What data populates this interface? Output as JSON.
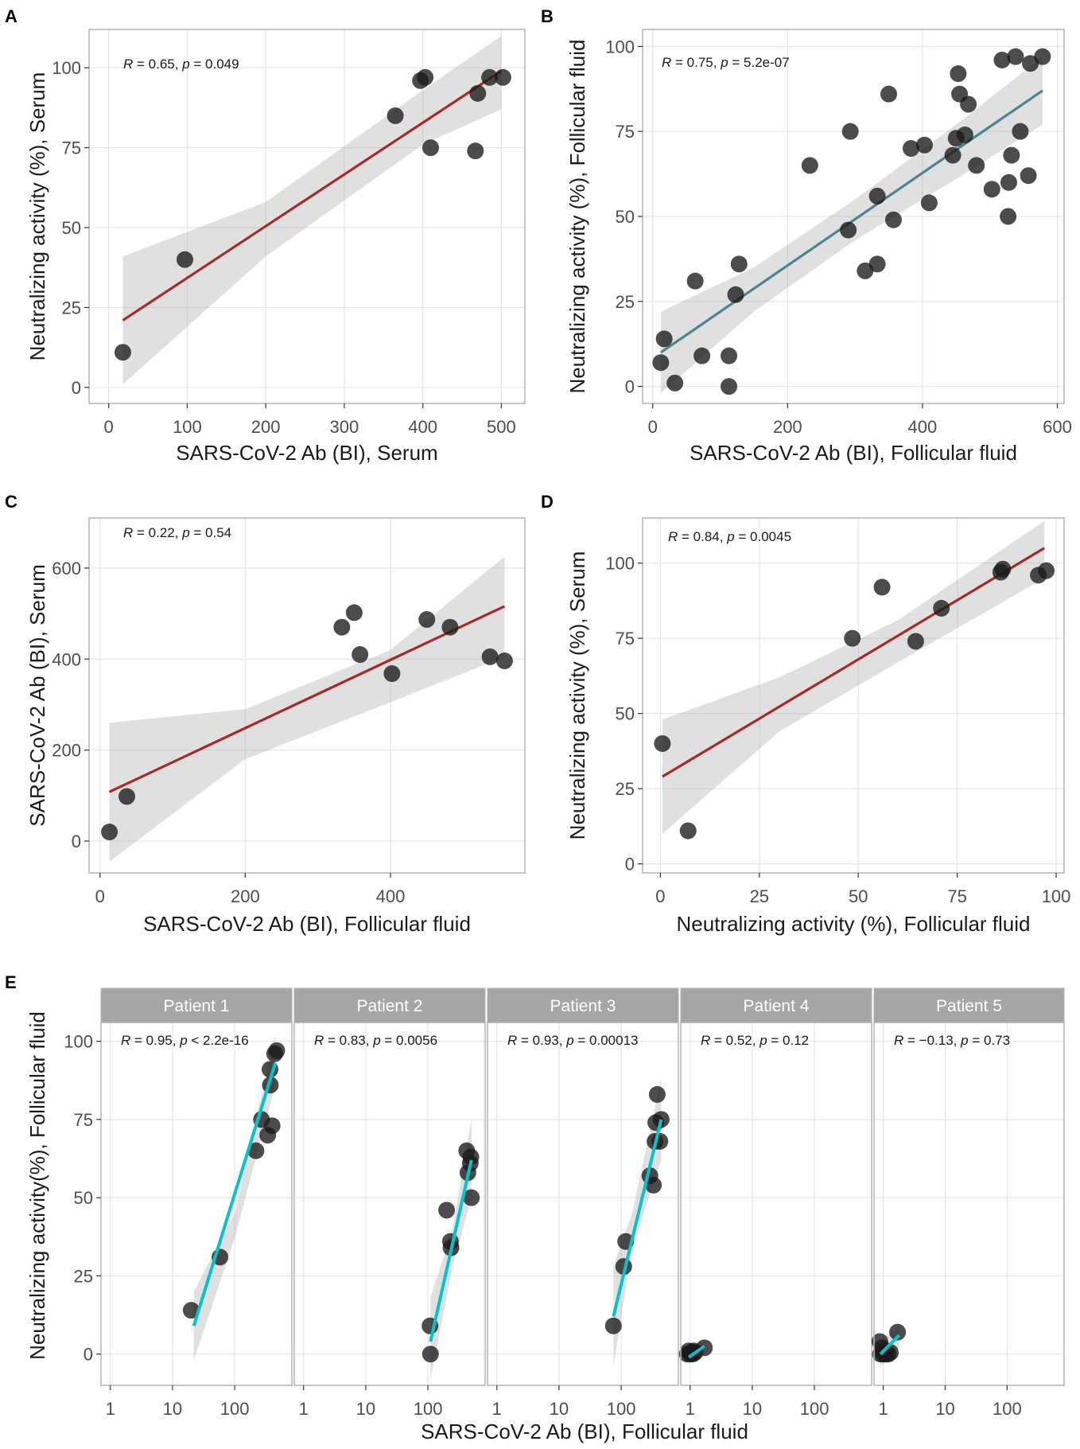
{
  "chart_data": [
    {
      "id": "A",
      "type": "scatter",
      "panel_label": "A",
      "xlabel": "SARS-CoV-2 Ab (BI), Serum",
      "ylabel": "Neutralizing activity (%), Serum",
      "annotation": {
        "r_prefix": "R",
        "r_text": " = 0.65, ",
        "p_prefix": "p",
        "p_text": " = 0.049"
      },
      "xlim": [
        -25,
        530
      ],
      "ylim": [
        -5,
        112
      ],
      "xticks": [
        0,
        100,
        200,
        300,
        400,
        500
      ],
      "yticks": [
        0,
        25,
        50,
        75,
        100
      ],
      "line_color": "#a52a2a",
      "fit": {
        "x0": 18,
        "y0": 21,
        "x1": 500,
        "y1": 99
      },
      "band": [
        [
          18,
          41,
          1
        ],
        [
          200,
          58,
          41
        ],
        [
          400,
          93,
          76
        ],
        [
          500,
          110,
          87
        ]
      ],
      "points": [
        [
          18,
          11
        ],
        [
          97,
          40
        ],
        [
          365,
          85
        ],
        [
          397,
          96
        ],
        [
          403,
          97
        ],
        [
          410,
          75
        ],
        [
          467,
          74
        ],
        [
          470,
          92
        ],
        [
          485,
          97
        ],
        [
          502,
          97
        ]
      ]
    },
    {
      "id": "B",
      "type": "scatter",
      "panel_label": "B",
      "xlabel": "SARS-CoV-2 Ab (BI), Follicular fluid",
      "ylabel": "Neutralizing activity (%), Follicular fluid",
      "annotation": {
        "r_prefix": "R",
        "r_text": " = 0.75, ",
        "p_prefix": "p",
        "p_text": " = 5.2e-07"
      },
      "xlim": [
        -15,
        610
      ],
      "ylim": [
        -5,
        105
      ],
      "xticks": [
        0,
        200,
        400,
        600
      ],
      "yticks": [
        0,
        25,
        50,
        75,
        100
      ],
      "line_color": "#4a8590",
      "fit": {
        "x0": 12,
        "y0": 10,
        "x1": 578,
        "y1": 87
      },
      "band": [
        [
          12,
          22,
          -2
        ],
        [
          150,
          35,
          22
        ],
        [
          300,
          55,
          43
        ],
        [
          450,
          77,
          61
        ],
        [
          578,
          97,
          77
        ]
      ],
      "points": [
        [
          12,
          7
        ],
        [
          17,
          14
        ],
        [
          33,
          1
        ],
        [
          63,
          31
        ],
        [
          73,
          9
        ],
        [
          113,
          9
        ],
        [
          113,
          0
        ],
        [
          123,
          27
        ],
        [
          128,
          36
        ],
        [
          233,
          65
        ],
        [
          290,
          46
        ],
        [
          293,
          75
        ],
        [
          315,
          34
        ],
        [
          333,
          36
        ],
        [
          333,
          56
        ],
        [
          350,
          86
        ],
        [
          357,
          49
        ],
        [
          383,
          70
        ],
        [
          403,
          71
        ],
        [
          410,
          54
        ],
        [
          445,
          68
        ],
        [
          450,
          73
        ],
        [
          453,
          92
        ],
        [
          455,
          86
        ],
        [
          463,
          74
        ],
        [
          468,
          83
        ],
        [
          480,
          65
        ],
        [
          503,
          58
        ],
        [
          518,
          96
        ],
        [
          527,
          50
        ],
        [
          528,
          60
        ],
        [
          532,
          68
        ],
        [
          538,
          97
        ],
        [
          545,
          75
        ],
        [
          557,
          62
        ],
        [
          560,
          95
        ],
        [
          578,
          97
        ]
      ]
    },
    {
      "id": "C",
      "type": "scatter",
      "panel_label": "C",
      "xlabel": "SARS-CoV-2 Ab (BI), Follicular fluid",
      "ylabel": "SARS-CoV-2 Ab (BI), Serum",
      "annotation": {
        "r_prefix": "R",
        "r_text": " = 0.22, ",
        "p_prefix": "p",
        "p_text": " = 0.54"
      },
      "xlim": [
        -15,
        585
      ],
      "ylim": [
        -70,
        710
      ],
      "xticks": [
        0,
        200,
        400
      ],
      "yticks": [
        0,
        200,
        400,
        600
      ],
      "line_color": "#a52a2a",
      "fit": {
        "x0": 13,
        "y0": 108,
        "x1": 557,
        "y1": 516
      },
      "band": [
        [
          13,
          260,
          -45
        ],
        [
          200,
          290,
          180
        ],
        [
          400,
          420,
          305
        ],
        [
          557,
          625,
          405
        ]
      ],
      "points": [
        [
          13,
          20
        ],
        [
          37,
          98
        ],
        [
          333,
          470
        ],
        [
          350,
          502
        ],
        [
          358,
          410
        ],
        [
          402,
          368
        ],
        [
          450,
          487
        ],
        [
          482,
          470
        ],
        [
          537,
          405
        ],
        [
          557,
          396
        ]
      ]
    },
    {
      "id": "D",
      "type": "scatter",
      "panel_label": "D",
      "xlabel": "Neutralizing activity (%), Follicular fluid",
      "ylabel": "Neutralizing activity (%), Serum",
      "annotation": {
        "r_prefix": "R",
        "r_text": " = 0.84, ",
        "p_prefix": "p",
        "p_text": " = 0.0045"
      },
      "xlim": [
        -4.5,
        102
      ],
      "ylim": [
        -3,
        115
      ],
      "xticks": [
        0,
        25,
        50,
        75,
        100
      ],
      "yticks": [
        0,
        25,
        50,
        75,
        100
      ],
      "line_color": "#a52a2a",
      "fit": {
        "x0": 0.5,
        "y0": 29,
        "x1": 97,
        "y1": 105
      },
      "band": [
        [
          0.5,
          48,
          10
        ],
        [
          30,
          62,
          44
        ],
        [
          60,
          81,
          67
        ],
        [
          97,
          114,
          95
        ]
      ],
      "points": [
        [
          0.5,
          40
        ],
        [
          7,
          11
        ],
        [
          48.5,
          75
        ],
        [
          56,
          92
        ],
        [
          64.5,
          74
        ],
        [
          71,
          85
        ],
        [
          86,
          97
        ],
        [
          86.5,
          98
        ],
        [
          95.5,
          96
        ],
        [
          97.5,
          97.5
        ]
      ]
    }
  ],
  "facet_chart": {
    "type": "scatter",
    "panel_label": "E",
    "xlabel": "SARS-CoV-2 Ab (BI), Follicular fluid",
    "ylabel": "Neutralizing activity(%), Follicular fluid",
    "x_scale": "log10",
    "xlim_log10": [
      -0.15,
      2.92
    ],
    "ylim": [
      -10,
      106
    ],
    "xticks": [
      1,
      10,
      100
    ],
    "yticks": [
      0,
      25,
      50,
      75,
      100
    ],
    "line_color": "#00c5cd",
    "facets": [
      {
        "strip": "Patient 1",
        "annotation": {
          "r_prefix": "R",
          "r_text": " = 0.95, ",
          "p_prefix": "p",
          "p_text": " < 2.2e-16"
        },
        "fit": {
          "x0": 22,
          "y0": 9,
          "x1": 450,
          "y1": 93
        },
        "band": [
          [
            22,
            20,
            -2
          ],
          [
            100,
            45,
            37
          ],
          [
            450,
            102,
            86
          ]
        ],
        "points": [
          [
            20,
            14
          ],
          [
            58,
            31
          ],
          [
            220,
            65
          ],
          [
            270,
            75
          ],
          [
            340,
            70
          ],
          [
            370,
            91
          ],
          [
            375,
            86
          ],
          [
            400,
            73
          ],
          [
            440,
            96
          ],
          [
            475,
            97
          ]
        ]
      },
      {
        "strip": "Patient 2",
        "annotation": {
          "r_prefix": "R",
          "r_text": " = 0.83, ",
          "p_prefix": "p",
          "p_text": " = 0.0056"
        },
        "fit": {
          "x0": 110,
          "y0": 4,
          "x1": 500,
          "y1": 62
        },
        "band": [
          [
            110,
            18,
            -8
          ],
          [
            250,
            40,
            28
          ],
          [
            500,
            75,
            50
          ]
        ],
        "points": [
          [
            108,
            9
          ],
          [
            110,
            0
          ],
          [
            200,
            46
          ],
          [
            230,
            36
          ],
          [
            235,
            34
          ],
          [
            420,
            65
          ],
          [
            440,
            58
          ],
          [
            480,
            61
          ],
          [
            490,
            63
          ],
          [
            500,
            50
          ]
        ]
      },
      {
        "strip": "Patient 3",
        "annotation": {
          "r_prefix": "R",
          "r_text": " = 0.93, ",
          "p_prefix": "p",
          "p_text": " = 0.00013"
        },
        "fit": {
          "x0": 75,
          "y0": 12,
          "x1": 440,
          "y1": 75
        },
        "band": [
          [
            75,
            28,
            -4
          ],
          [
            150,
            45,
            34
          ],
          [
            440,
            88,
            62
          ]
        ],
        "points": [
          [
            75,
            9
          ],
          [
            110,
            28
          ],
          [
            118,
            36
          ],
          [
            290,
            57
          ],
          [
            330,
            54
          ],
          [
            350,
            68
          ],
          [
            360,
            74
          ],
          [
            380,
            83
          ],
          [
            420,
            68
          ],
          [
            440,
            75
          ]
        ]
      },
      {
        "strip": "Patient 4",
        "annotation": {
          "r_prefix": "R",
          "r_text": " = 0.52, ",
          "p_prefix": "p",
          "p_text": " = 0.12"
        },
        "fit": {
          "x0": 0.95,
          "y0": -1,
          "x1": 1.7,
          "y1": 2.5
        },
        "band": [
          [
            0.95,
            0.5,
            -2.5
          ],
          [
            1.7,
            4,
            1
          ]
        ],
        "points": [
          [
            0.9,
            0
          ],
          [
            0.95,
            1
          ],
          [
            1,
            0
          ],
          [
            1.05,
            0.5
          ],
          [
            1.1,
            0
          ],
          [
            1.15,
            1
          ],
          [
            1.2,
            0.5
          ],
          [
            1.7,
            2
          ]
        ]
      },
      {
        "strip": "Patient 5",
        "annotation": {
          "r_prefix": "R",
          "r_text": " = −0.13, ",
          "p_prefix": "p",
          "p_text": " = 0.73"
        },
        "fit": {
          "x0": 0.9,
          "y0": 0,
          "x1": 1.8,
          "y1": 6
        },
        "band": [
          [
            0.9,
            4,
            -4
          ],
          [
            1.8,
            9,
            2
          ]
        ],
        "points": [
          [
            0.88,
            4
          ],
          [
            0.9,
            0
          ],
          [
            0.95,
            2
          ],
          [
            1,
            0
          ],
          [
            1.05,
            1
          ],
          [
            1.1,
            0
          ],
          [
            1.2,
            0
          ],
          [
            1.3,
            0.5
          ],
          [
            1.7,
            7
          ]
        ]
      }
    ]
  }
}
